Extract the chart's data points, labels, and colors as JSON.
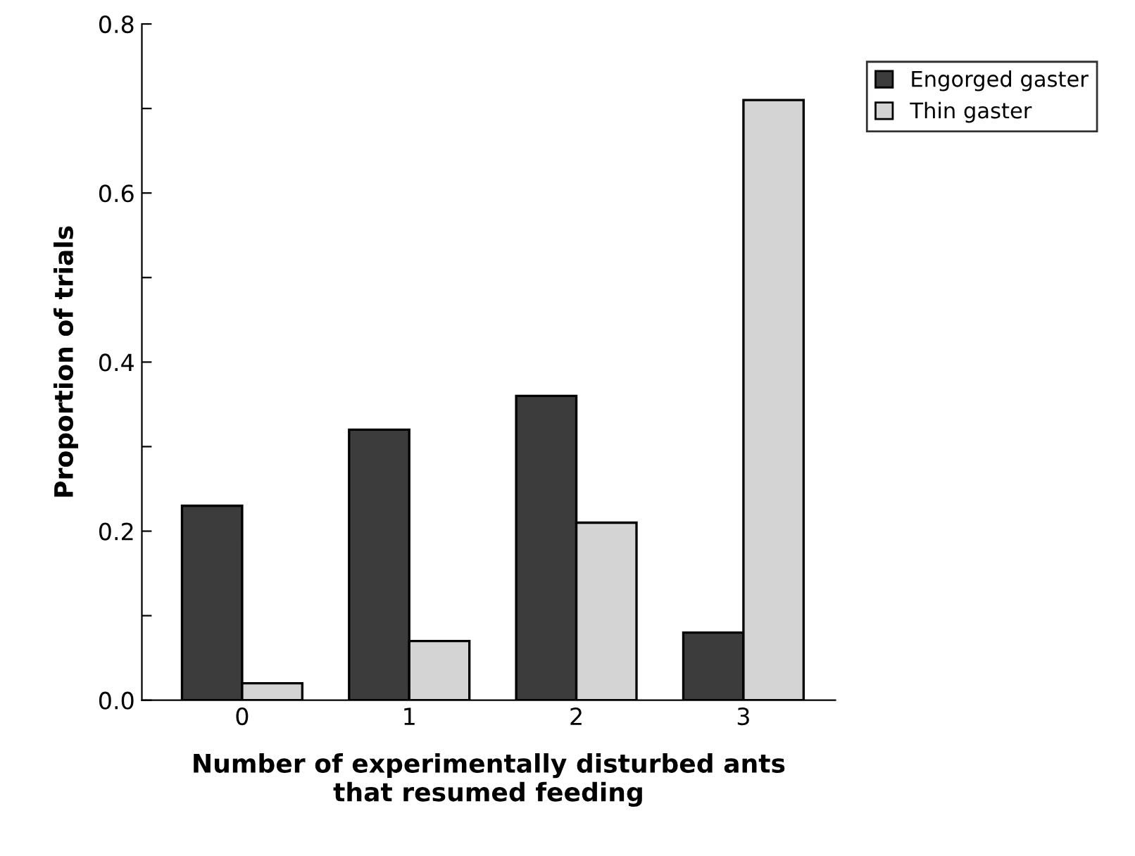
{
  "chart_data": {
    "type": "bar",
    "xlabel": "Number of experimentally disturbed ants\nthat resumed feeding",
    "ylabel": "Proportion of trials",
    "categories": [
      "0",
      "1",
      "2",
      "3"
    ],
    "series": [
      {
        "name": "Engorged gaster",
        "color": "#3c3c3c",
        "values": [
          0.23,
          0.32,
          0.36,
          0.08
        ]
      },
      {
        "name": "Thin gaster",
        "color": "#d4d4d4",
        "values": [
          0.02,
          0.07,
          0.21,
          0.71
        ]
      }
    ],
    "ylim": [
      0,
      0.8
    ],
    "yticks": [
      {
        "value": 0,
        "label": "0.0"
      },
      {
        "value": 0.1,
        "label": null
      },
      0.2,
      {
        "value": 0.3,
        "label": null
      },
      0.4,
      {
        "value": 0.5,
        "label": null
      },
      0.6,
      {
        "value": 0.7,
        "label": null
      },
      0.8
    ],
    "legend": "top right",
    "grid": false
  }
}
